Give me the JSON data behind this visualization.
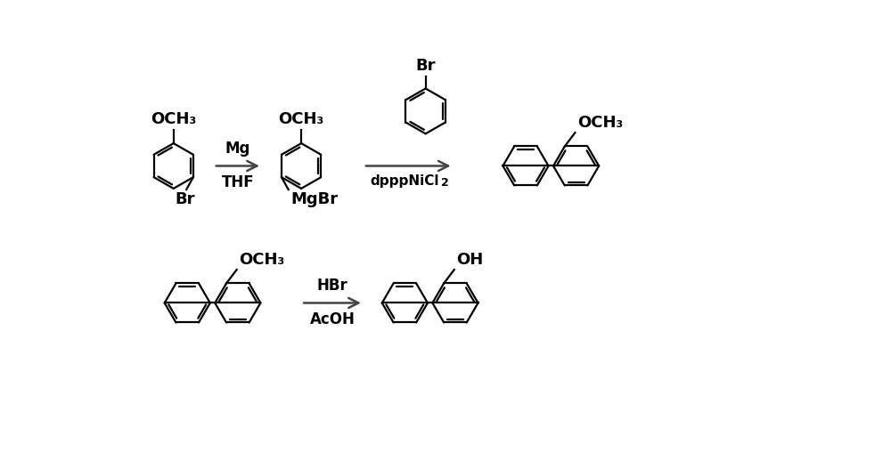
{
  "bg_color": "#ffffff",
  "line_color": "#000000",
  "line_width": 1.6,
  "arrow_color": "#444444",
  "text_color": "#000000",
  "fig_width": 10.0,
  "fig_height": 5.08,
  "dpi": 100,
  "OCH3": "OCH₃",
  "MgBr": "MgBr",
  "Br": "Br",
  "OH": "OH",
  "Mg": "Mg",
  "THF": "THF",
  "dpppNiCl2_main": "dpppNiCl",
  "dpppNiCl2_sub": "2",
  "HBr": "HBr",
  "AcOH": "AcOH",
  "font_size_label": 13,
  "font_size_sub": 9,
  "font_size_reagent": 12
}
